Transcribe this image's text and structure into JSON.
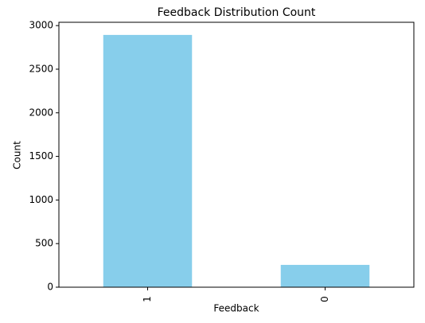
{
  "chart_data": {
    "type": "bar",
    "title": "Feedback Distribution Count",
    "x_label": "Feedback",
    "y_label": "Count",
    "categories": [
      "1",
      "0"
    ],
    "values": [
      2893,
      256
    ],
    "color": "#87ceeb",
    "ylim": [
      0,
      3038
    ],
    "yticks": [
      0,
      500,
      1000,
      1500,
      2000,
      2500,
      3000
    ],
    "grid": false
  }
}
